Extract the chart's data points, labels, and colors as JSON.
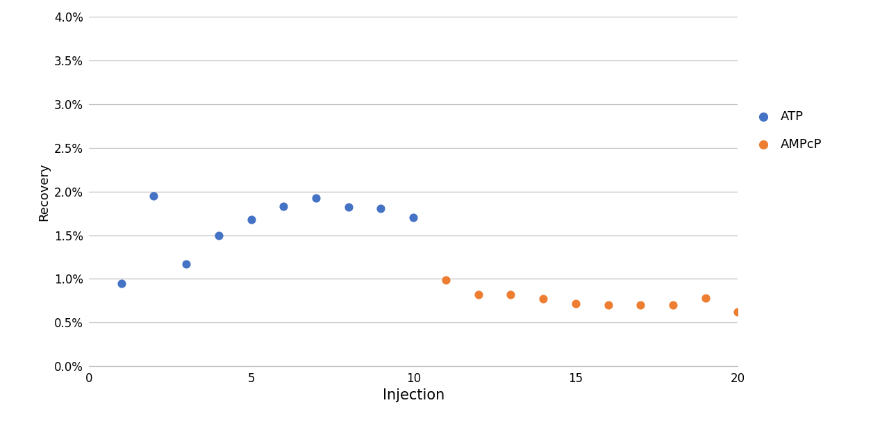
{
  "atp_x": [
    1,
    2,
    3,
    4,
    5,
    6,
    7,
    8,
    9,
    10
  ],
  "atp_y": [
    0.0095,
    0.0195,
    0.0117,
    0.015,
    0.0168,
    0.0183,
    0.0193,
    0.0182,
    0.0181,
    0.017
  ],
  "amcp_x": [
    11,
    12,
    13,
    14,
    15,
    16,
    17,
    18,
    19,
    20
  ],
  "amcp_y": [
    0.0099,
    0.0082,
    0.0082,
    0.0077,
    0.0072,
    0.007,
    0.007,
    0.007,
    0.0078,
    0.0062
  ],
  "atp_color": "#4472C4",
  "amcp_color": "#ED7D31",
  "atp_label": "ATP",
  "amcp_label": "AMPcP",
  "xlabel": "Injection",
  "ylabel": "Recovery",
  "xlim": [
    0,
    20
  ],
  "ylim": [
    0.0,
    0.04
  ],
  "yticks": [
    0.0,
    0.005,
    0.01,
    0.015,
    0.02,
    0.025,
    0.03,
    0.035,
    0.04
  ],
  "xticks": [
    0,
    5,
    10,
    15,
    20
  ],
  "marker_size": 60,
  "xlabel_fontsize": 15,
  "ylabel_fontsize": 13,
  "tick_fontsize": 12,
  "legend_fontsize": 13,
  "background_color": "#ffffff",
  "grid_color": "#c0c0c0",
  "grid_linewidth": 0.9,
  "spine_color": "#c0c0c0"
}
